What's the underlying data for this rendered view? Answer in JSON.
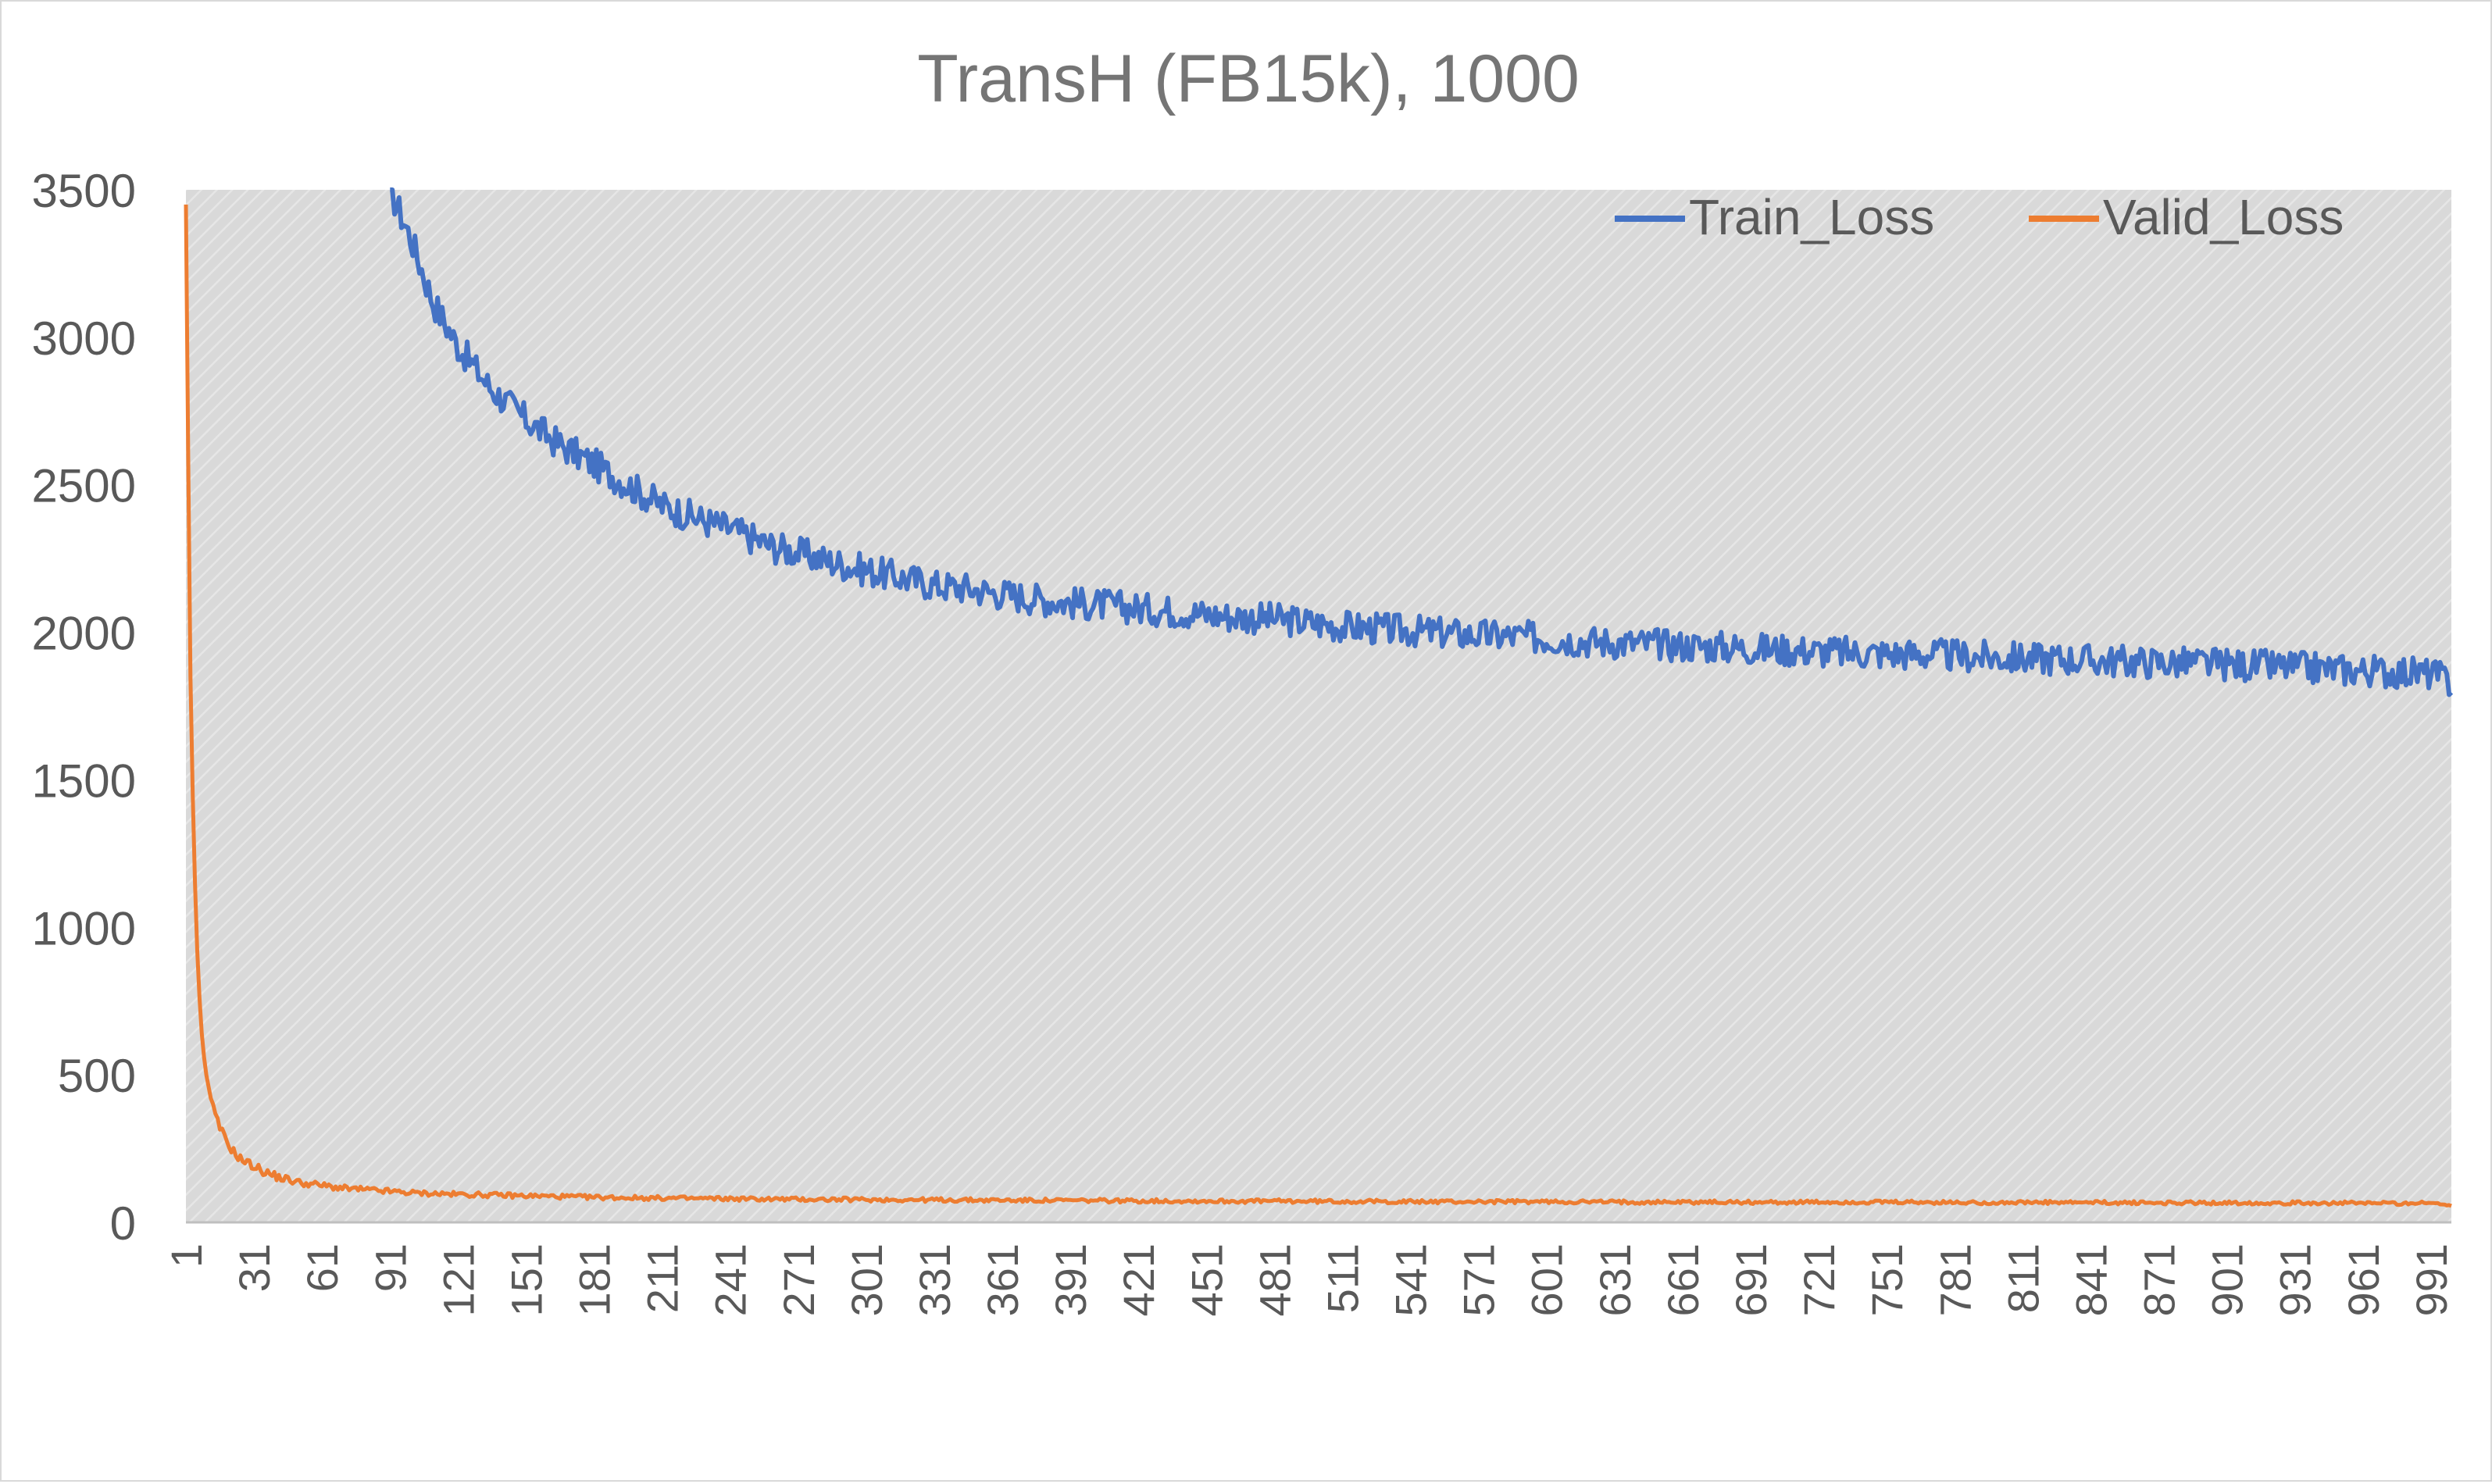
{
  "chart_data": {
    "type": "line",
    "title": "TransH (FB15k), 1000",
    "xlabel": "",
    "ylabel": "",
    "x_range": [
      1,
      1000
    ],
    "ylim": [
      0,
      3500
    ],
    "y_ticks": [
      0,
      500,
      1000,
      1500,
      2000,
      2500,
      3000,
      3500
    ],
    "x_tick_labels": [
      "1",
      "31",
      "61",
      "91",
      "121",
      "151",
      "181",
      "211",
      "241",
      "271",
      "301",
      "331",
      "361",
      "391",
      "421",
      "451",
      "481",
      "511",
      "541",
      "571",
      "601",
      "631",
      "661",
      "691",
      "721",
      "751",
      "781",
      "811",
      "841",
      "871",
      "901",
      "931",
      "961",
      "991"
    ],
    "grid": false,
    "plot_background": "hatched light gray",
    "legend_position": "top-right",
    "series": [
      {
        "name": "Train_Loss",
        "color": "#4472c4",
        "x": [
          91,
          100,
          110,
          121,
          135,
          151,
          165,
          181,
          200,
          211,
          225,
          241,
          260,
          271,
          285,
          301,
          320,
          331,
          345,
          361,
          380,
          391,
          410,
          421,
          440,
          451,
          470,
          481,
          500,
          511,
          530,
          541,
          560,
          571,
          590,
          601,
          620,
          631,
          650,
          661,
          680,
          691,
          710,
          721,
          740,
          751,
          770,
          781,
          800,
          811,
          830,
          841,
          860,
          871,
          890,
          901,
          920,
          931,
          950,
          961,
          980,
          991,
          1000
        ],
        "values": [
          3500,
          3340,
          3120,
          2970,
          2830,
          2720,
          2640,
          2570,
          2480,
          2430,
          2390,
          2350,
          2290,
          2270,
          2240,
          2210,
          2180,
          2160,
          2150,
          2130,
          2110,
          2100,
          2090,
          2080,
          2070,
          2060,
          2050,
          2045,
          2030,
          2020,
          2010,
          2005,
          1995,
          1990,
          1985,
          1980,
          1970,
          1965,
          1960,
          1955,
          1950,
          1945,
          1940,
          1935,
          1930,
          1928,
          1925,
          1920,
          1915,
          1912,
          1910,
          1905,
          1900,
          1898,
          1895,
          1890,
          1885,
          1880,
          1875,
          1870,
          1865,
          1860,
          1830
        ]
      },
      {
        "name": "Valid_Loss",
        "color": "#ed7d31",
        "x": [
          1,
          2,
          3,
          4,
          5,
          6,
          7,
          8,
          9,
          10,
          12,
          14,
          16,
          18,
          20,
          23,
          26,
          31,
          36,
          41,
          46,
          51,
          61,
          71,
          81,
          91,
          101,
          121,
          151,
          181,
          211,
          241,
          271,
          301,
          331,
          361,
          391,
          421,
          451,
          481,
          511,
          541,
          571,
          601,
          631,
          661,
          691,
          721,
          751,
          781,
          811,
          841,
          871,
          901,
          931,
          961,
          991,
          1000
        ],
        "values": [
          3450,
          2600,
          1850,
          1450,
          1150,
          920,
          760,
          640,
          560,
          500,
          420,
          360,
          320,
          290,
          260,
          230,
          210,
          190,
          170,
          155,
          145,
          135,
          125,
          115,
          110,
          105,
          100,
          95,
          90,
          85,
          82,
          80,
          78,
          77,
          76,
          75,
          74,
          73,
          72,
          72,
          71,
          70,
          70,
          70,
          69,
          69,
          68,
          68,
          68,
          67,
          67,
          67,
          66,
          66,
          66,
          65,
          65,
          60
        ]
      }
    ]
  }
}
